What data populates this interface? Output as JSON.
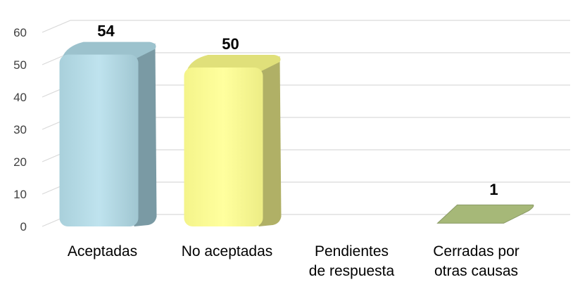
{
  "chart_data": {
    "type": "bar",
    "categories": [
      [
        "Aceptadas"
      ],
      [
        "No aceptadas"
      ],
      [
        "Pendientes",
        "de respuesta"
      ],
      [
        "Cerradas por",
        "otras causas"
      ]
    ],
    "values": [
      54,
      50,
      0,
      1
    ],
    "data_labels": [
      "54",
      "50",
      "",
      "1"
    ],
    "yticks": [
      "0",
      "10",
      "20",
      "30",
      "40",
      "50",
      "60"
    ],
    "ylim": [
      0,
      70
    ],
    "grid": true,
    "legend": "none",
    "colors": {
      "bars_front": [
        "#b7dde8",
        "#ffff99",
        "#c3d69b",
        "#a6b878"
      ],
      "bars_side": [
        "#7a9aa4",
        "#b0b066",
        "#8a9a66",
        "#8a9a66"
      ],
      "bars_top": [
        "#9cc2cd",
        "#e0e07a",
        "#b0c088",
        "#a6b878"
      ],
      "grid": "#d9d9d9"
    }
  }
}
